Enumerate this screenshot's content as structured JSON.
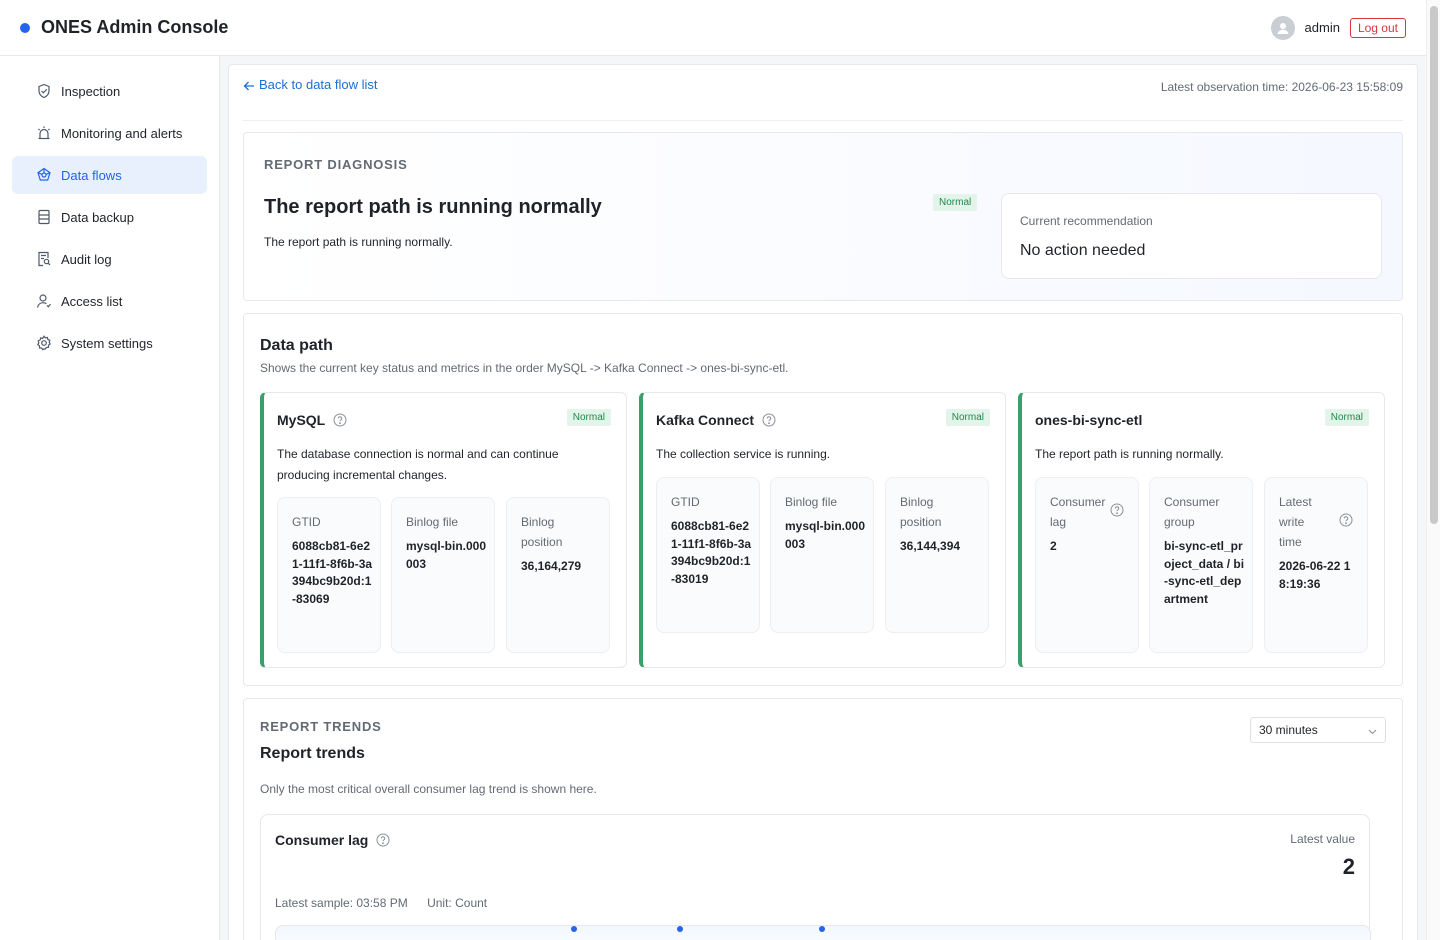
{
  "app": {
    "title": "ONES Admin Console",
    "brand_color": "#2563eb"
  },
  "user": {
    "name": "admin",
    "logout_label": "Log out"
  },
  "sidebar": {
    "items": [
      {
        "label": "Inspection",
        "icon": "shield-check-icon"
      },
      {
        "label": "Monitoring and alerts",
        "icon": "alarm-icon"
      },
      {
        "label": "Data flows",
        "icon": "data-flow-icon",
        "active": true
      },
      {
        "label": "Data backup",
        "icon": "database-icon"
      },
      {
        "label": "Audit log",
        "icon": "audit-log-icon"
      },
      {
        "label": "Access list",
        "icon": "user-icon"
      },
      {
        "label": "System settings",
        "icon": "gear-icon"
      }
    ]
  },
  "topbar": {
    "back_label": "Back to data flow list",
    "observation_time": "Latest observation time: 2026-06-23 15:58:09"
  },
  "diagnosis": {
    "kicker": "REPORT DIAGNOSIS",
    "title": "The report path is running normally",
    "description": "The report path is running normally.",
    "status": "Normal",
    "recommendation_label": "Current recommendation",
    "recommendation_value": "No action needed"
  },
  "data_path": {
    "title": "Data path",
    "description": "Shows the current key status and metrics in the order MySQL -> Kafka Connect -> ones-bi-sync-etl.",
    "stages": [
      {
        "name": "MySQL",
        "status": "Normal",
        "description": "The database connection is normal and can continue producing incremental changes.",
        "metrics": [
          {
            "label": "GTID",
            "value": "6088cb81-6e21-11f1-8f6b-3a394bc9b20d:1-83069"
          },
          {
            "label": "Binlog file",
            "value": "mysql-bin.000003"
          },
          {
            "label": "Binlog position",
            "value": "36,164,279"
          }
        ]
      },
      {
        "name": "Kafka Connect",
        "status": "Normal",
        "description": "The collection service is running.",
        "metrics": [
          {
            "label": "GTID",
            "value": "6088cb81-6e21-11f1-8f6b-3a394bc9b20d:1-83019"
          },
          {
            "label": "Binlog file",
            "value": "mysql-bin.000003"
          },
          {
            "label": "Binlog position",
            "value": "36,144,394"
          }
        ]
      },
      {
        "name": "ones-bi-sync-etl",
        "status": "Normal",
        "description": "The report path is running normally.",
        "metrics": [
          {
            "label": "Consumer lag",
            "value": "2"
          },
          {
            "label": "Consumer group",
            "value": "bi-sync-etl_project_data / bi-sync-etl_department"
          },
          {
            "label": "Latest write time",
            "value": "2026-06-22 18:19:36"
          }
        ]
      }
    ]
  },
  "trends": {
    "kicker": "REPORT TRENDS",
    "title": "Report trends",
    "description": "Only the most critical overall consumer lag trend is shown here.",
    "range": "30 minutes",
    "chart": {
      "title": "Consumer lag",
      "latest_label": "Latest value",
      "latest_value": "2",
      "latest_sample": "Latest sample: 03:58 PM",
      "unit": "Unit: Count"
    }
  },
  "colors": {
    "normal_green": "#3a9f6b",
    "link_blue": "#1a6fd6",
    "danger_red": "#d9363e"
  }
}
